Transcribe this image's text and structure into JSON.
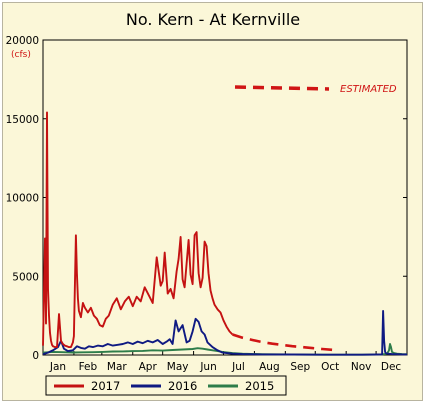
{
  "chart_data": {
    "type": "line",
    "title": "No. Kern - At Kernville",
    "ylabel": "(cfs)",
    "xlabel": "",
    "ylim": [
      0,
      20000
    ],
    "yticks": [
      0,
      5000,
      10000,
      15000,
      20000
    ],
    "ytick_labels": [
      "0",
      "5000",
      "10000",
      "15000",
      "20000"
    ],
    "xlim": [
      0,
      365
    ],
    "month_labels": [
      "Jan",
      "Feb",
      "Mar",
      "Apr",
      "May",
      "Jun",
      "Jul",
      "Aug",
      "Sep",
      "Oct",
      "Nov",
      "Dec"
    ],
    "month_centers": [
      15,
      45,
      74,
      105,
      135,
      166,
      196,
      227,
      258,
      288,
      319,
      349
    ],
    "month_bounds": [
      0,
      31,
      59,
      90,
      120,
      151,
      181,
      212,
      243,
      273,
      304,
      334,
      365
    ],
    "grid": false,
    "legend_position": "bottom",
    "series": [
      {
        "name": "2017",
        "color": "#c41212",
        "x": [
          0,
          2,
          3,
          4,
          5,
          6,
          7,
          8,
          9,
          10,
          12,
          14,
          16,
          18,
          20,
          22,
          24,
          26,
          28,
          30,
          31,
          33,
          34,
          35,
          36,
          38,
          40,
          42,
          45,
          48,
          51,
          54,
          57,
          60,
          63,
          66,
          70,
          74,
          78,
          82,
          86,
          90,
          94,
          98,
          102,
          106,
          110,
          114,
          118,
          120,
          122,
          125,
          128,
          131,
          134,
          136,
          138,
          140,
          142,
          144,
          146,
          148,
          150,
          152,
          154,
          156,
          158,
          160,
          162,
          164,
          166,
          168,
          170,
          172,
          175,
          178,
          181,
          184,
          187,
          190
        ],
        "y": [
          600,
          7400,
          2000,
          15400,
          4200,
          2500,
          1400,
          900,
          650,
          550,
          500,
          500,
          2600,
          900,
          700,
          600,
          550,
          500,
          500,
          800,
          1200,
          7600,
          5200,
          3600,
          2800,
          2400,
          3300,
          3000,
          2700,
          3000,
          2500,
          2300,
          1900,
          1800,
          2300,
          2500,
          3200,
          3600,
          2900,
          3400,
          3700,
          3100,
          3700,
          3400,
          4300,
          3800,
          3300,
          6200,
          4400,
          4700,
          6500,
          3900,
          4200,
          3600,
          5300,
          6100,
          7500,
          4800,
          4300,
          5800,
          7300,
          5100,
          4500,
          7600,
          7800,
          5200,
          4300,
          4900,
          7200,
          6900,
          5200,
          4100,
          3600,
          3200,
          2900,
          2700,
          2200,
          1800,
          1500,
          1300
        ]
      },
      {
        "name": "2017 (estimated)",
        "color": "#d01515",
        "dashed": true,
        "x": [
          190,
          200,
          210,
          220,
          230,
          240,
          250,
          260,
          270,
          280,
          290,
          296
        ],
        "y": [
          1300,
          1100,
          950,
          820,
          720,
          640,
          560,
          500,
          440,
          380,
          330,
          300
        ]
      },
      {
        "name": "2016",
        "color": "#0f1a82",
        "x": [
          0,
          5,
          10,
          15,
          18,
          21,
          25,
          30,
          34,
          38,
          42,
          46,
          50,
          55,
          60,
          65,
          70,
          75,
          80,
          85,
          90,
          95,
          100,
          105,
          110,
          115,
          120,
          124,
          127,
          130,
          133,
          136,
          140,
          144,
          147,
          150,
          153,
          156,
          159,
          162,
          165,
          170,
          175,
          180,
          190,
          200,
          220,
          250,
          280,
          300,
          320,
          335,
          340,
          341,
          342,
          343,
          344,
          346,
          350,
          355,
          360,
          365
        ],
        "y": [
          50,
          150,
          300,
          500,
          900,
          400,
          250,
          300,
          550,
          450,
          400,
          550,
          500,
          600,
          550,
          700,
          600,
          650,
          700,
          800,
          700,
          850,
          750,
          900,
          800,
          950,
          700,
          850,
          1000,
          700,
          2200,
          1500,
          1900,
          800,
          900,
          1500,
          2300,
          2100,
          1500,
          1300,
          800,
          500,
          300,
          150,
          80,
          60,
          40,
          30,
          20,
          20,
          20,
          30,
          40,
          2800,
          900,
          200,
          100,
          80,
          60,
          50,
          40,
          40
        ]
      },
      {
        "name": "2015",
        "color": "#2e7d4a",
        "x": [
          0,
          10,
          20,
          30,
          40,
          50,
          60,
          70,
          80,
          90,
          100,
          110,
          120,
          130,
          140,
          150,
          155,
          160,
          165,
          170,
          175,
          180,
          190,
          200,
          220,
          250,
          280,
          300,
          320,
          335,
          340,
          345,
          347,
          348,
          349,
          350,
          352,
          355,
          360,
          365
        ],
        "y": [
          150,
          200,
          180,
          160,
          170,
          180,
          200,
          220,
          230,
          250,
          260,
          300,
          280,
          320,
          350,
          380,
          430,
          400,
          350,
          300,
          250,
          200,
          120,
          80,
          50,
          30,
          20,
          20,
          20,
          30,
          40,
          80,
          300,
          700,
          500,
          200,
          120,
          80,
          60,
          50
        ]
      }
    ],
    "annotations": [
      {
        "text": "ESTIMATED"
      }
    ],
    "legend_entries": [
      "2017",
      "2016",
      "2015"
    ]
  }
}
